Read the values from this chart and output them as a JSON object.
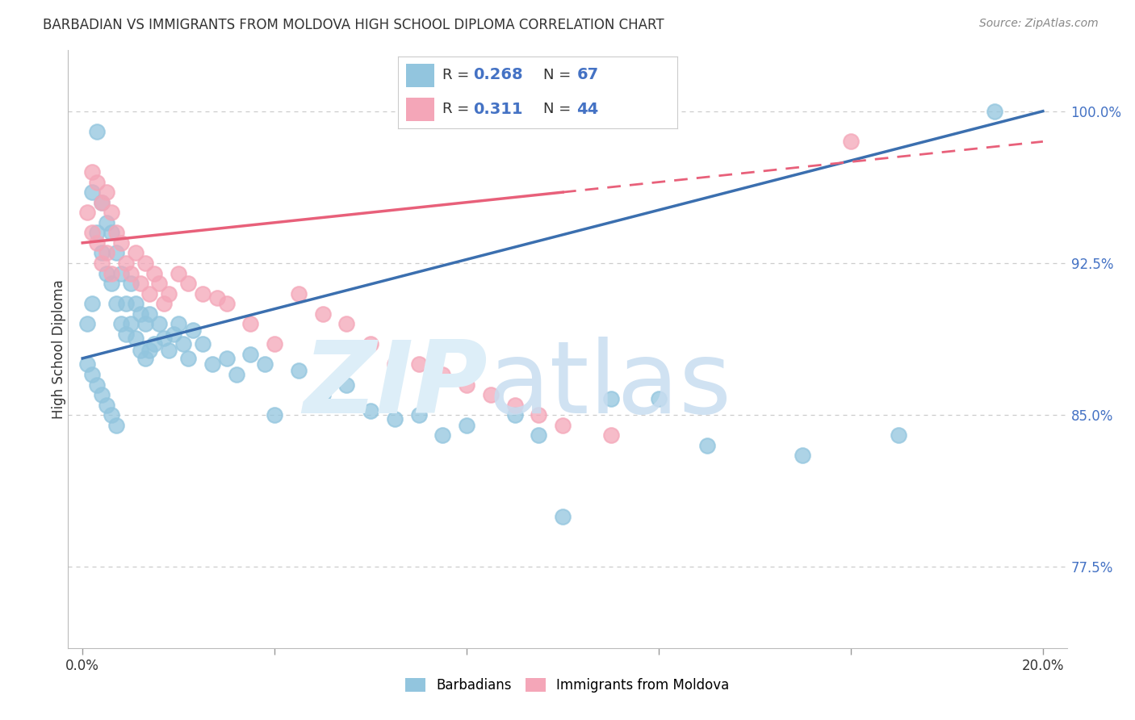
{
  "title": "BARBADIAN VS IMMIGRANTS FROM MOLDOVA HIGH SCHOOL DIPLOMA CORRELATION CHART",
  "source": "Source: ZipAtlas.com",
  "ylabel": "High School Diploma",
  "ytick_labels": [
    "77.5%",
    "85.0%",
    "92.5%",
    "100.0%"
  ],
  "ytick_values": [
    0.775,
    0.85,
    0.925,
    1.0
  ],
  "xmin": 0.0,
  "xmax": 0.2,
  "ymin": 0.735,
  "ymax": 1.03,
  "blue_color": "#92c5de",
  "pink_color": "#f4a6b8",
  "blue_line_color": "#3b6faf",
  "pink_line_color": "#e8607a",
  "legend_value_color": "#4472c4",
  "blue_line_x0": 0.0,
  "blue_line_y0": 0.878,
  "blue_line_x1": 0.2,
  "blue_line_y1": 1.0,
  "pink_line_x0": 0.0,
  "pink_line_y0": 0.935,
  "pink_line_x1": 0.2,
  "pink_line_y1": 0.985,
  "blue_pts_x": [
    0.001,
    0.002,
    0.002,
    0.003,
    0.003,
    0.004,
    0.004,
    0.005,
    0.005,
    0.006,
    0.006,
    0.007,
    0.007,
    0.008,
    0.008,
    0.009,
    0.009,
    0.01,
    0.01,
    0.011,
    0.011,
    0.012,
    0.012,
    0.013,
    0.013,
    0.014,
    0.014,
    0.015,
    0.016,
    0.017,
    0.018,
    0.019,
    0.02,
    0.021,
    0.022,
    0.023,
    0.025,
    0.027,
    0.03,
    0.032,
    0.035,
    0.038,
    0.04,
    0.045,
    0.05,
    0.055,
    0.06,
    0.065,
    0.07,
    0.075,
    0.08,
    0.09,
    0.095,
    0.1,
    0.11,
    0.12,
    0.13,
    0.15,
    0.17,
    0.19,
    0.001,
    0.002,
    0.003,
    0.004,
    0.005,
    0.006,
    0.007
  ],
  "blue_pts_y": [
    0.895,
    0.905,
    0.96,
    0.94,
    0.99,
    0.955,
    0.93,
    0.92,
    0.945,
    0.915,
    0.94,
    0.905,
    0.93,
    0.895,
    0.92,
    0.905,
    0.89,
    0.895,
    0.915,
    0.888,
    0.905,
    0.882,
    0.9,
    0.878,
    0.895,
    0.882,
    0.9,
    0.885,
    0.895,
    0.888,
    0.882,
    0.89,
    0.895,
    0.885,
    0.878,
    0.892,
    0.885,
    0.875,
    0.878,
    0.87,
    0.88,
    0.875,
    0.85,
    0.872,
    0.86,
    0.865,
    0.852,
    0.848,
    0.85,
    0.84,
    0.845,
    0.85,
    0.84,
    0.8,
    0.858,
    0.858,
    0.835,
    0.83,
    0.84,
    1.0,
    0.875,
    0.87,
    0.865,
    0.86,
    0.855,
    0.85,
    0.845
  ],
  "pink_pts_x": [
    0.001,
    0.002,
    0.002,
    0.003,
    0.003,
    0.004,
    0.004,
    0.005,
    0.005,
    0.006,
    0.006,
    0.007,
    0.008,
    0.009,
    0.01,
    0.011,
    0.012,
    0.013,
    0.014,
    0.015,
    0.016,
    0.017,
    0.018,
    0.02,
    0.022,
    0.025,
    0.028,
    0.03,
    0.035,
    0.04,
    0.045,
    0.05,
    0.055,
    0.06,
    0.065,
    0.07,
    0.075,
    0.08,
    0.085,
    0.09,
    0.095,
    0.1,
    0.11,
    0.16
  ],
  "pink_pts_y": [
    0.95,
    0.97,
    0.94,
    0.965,
    0.935,
    0.955,
    0.925,
    0.96,
    0.93,
    0.95,
    0.92,
    0.94,
    0.935,
    0.925,
    0.92,
    0.93,
    0.915,
    0.925,
    0.91,
    0.92,
    0.915,
    0.905,
    0.91,
    0.92,
    0.915,
    0.91,
    0.908,
    0.905,
    0.895,
    0.885,
    0.91,
    0.9,
    0.895,
    0.885,
    0.875,
    0.875,
    0.87,
    0.865,
    0.86,
    0.855,
    0.85,
    0.845,
    0.84,
    0.985
  ]
}
